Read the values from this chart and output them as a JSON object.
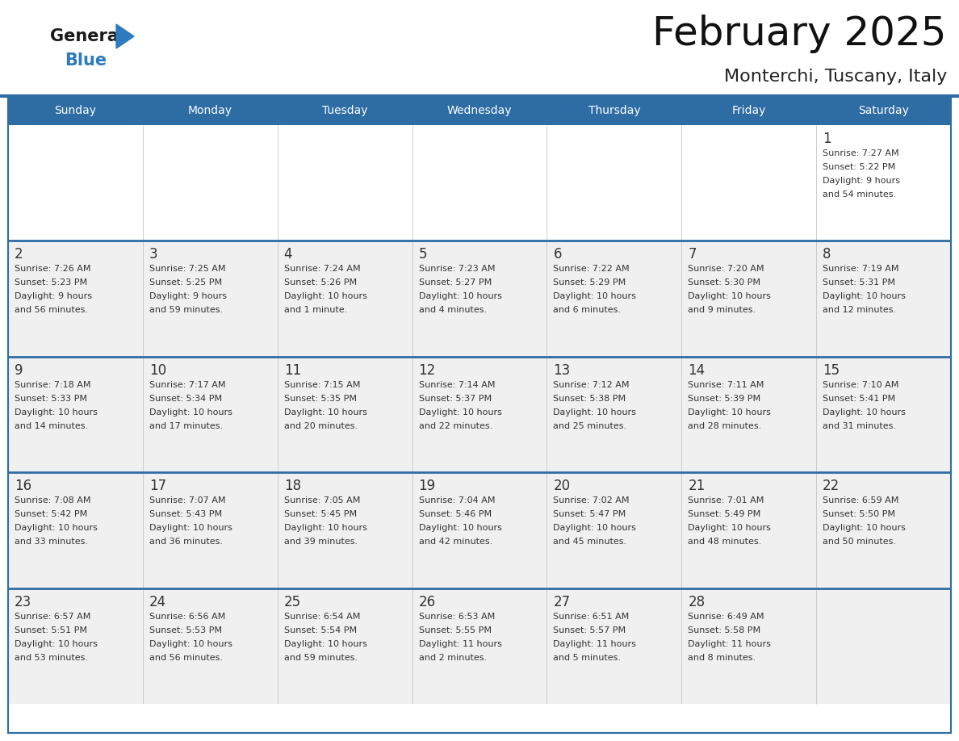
{
  "title": "February 2025",
  "subtitle": "Monterchi, Tuscany, Italy",
  "header_bg": "#2E6DA4",
  "header_text_color": "#FFFFFF",
  "cell_bg_light": "#FFFFFF",
  "cell_bg_gray": "#F0F0F0",
  "cell_border": "#BBBBBB",
  "week_separator_color": "#2E6DA4",
  "day_number_color": "#333333",
  "info_text_color": "#333333",
  "logo_general_color": "#1a1a1a",
  "logo_blue_color": "#2E7BBF",
  "day_headers": [
    "Sunday",
    "Monday",
    "Tuesday",
    "Wednesday",
    "Thursday",
    "Friday",
    "Saturday"
  ],
  "calendar": [
    [
      null,
      null,
      null,
      null,
      null,
      null,
      {
        "day": 1,
        "sunrise": "7:27 AM",
        "sunset": "5:22 PM",
        "daylight": "9 hours\nand 54 minutes."
      }
    ],
    [
      {
        "day": 2,
        "sunrise": "7:26 AM",
        "sunset": "5:23 PM",
        "daylight": "9 hours\nand 56 minutes."
      },
      {
        "day": 3,
        "sunrise": "7:25 AM",
        "sunset": "5:25 PM",
        "daylight": "9 hours\nand 59 minutes."
      },
      {
        "day": 4,
        "sunrise": "7:24 AM",
        "sunset": "5:26 PM",
        "daylight": "10 hours\nand 1 minute."
      },
      {
        "day": 5,
        "sunrise": "7:23 AM",
        "sunset": "5:27 PM",
        "daylight": "10 hours\nand 4 minutes."
      },
      {
        "day": 6,
        "sunrise": "7:22 AM",
        "sunset": "5:29 PM",
        "daylight": "10 hours\nand 6 minutes."
      },
      {
        "day": 7,
        "sunrise": "7:20 AM",
        "sunset": "5:30 PM",
        "daylight": "10 hours\nand 9 minutes."
      },
      {
        "day": 8,
        "sunrise": "7:19 AM",
        "sunset": "5:31 PM",
        "daylight": "10 hours\nand 12 minutes."
      }
    ],
    [
      {
        "day": 9,
        "sunrise": "7:18 AM",
        "sunset": "5:33 PM",
        "daylight": "10 hours\nand 14 minutes."
      },
      {
        "day": 10,
        "sunrise": "7:17 AM",
        "sunset": "5:34 PM",
        "daylight": "10 hours\nand 17 minutes."
      },
      {
        "day": 11,
        "sunrise": "7:15 AM",
        "sunset": "5:35 PM",
        "daylight": "10 hours\nand 20 minutes."
      },
      {
        "day": 12,
        "sunrise": "7:14 AM",
        "sunset": "5:37 PM",
        "daylight": "10 hours\nand 22 minutes."
      },
      {
        "day": 13,
        "sunrise": "7:12 AM",
        "sunset": "5:38 PM",
        "daylight": "10 hours\nand 25 minutes."
      },
      {
        "day": 14,
        "sunrise": "7:11 AM",
        "sunset": "5:39 PM",
        "daylight": "10 hours\nand 28 minutes."
      },
      {
        "day": 15,
        "sunrise": "7:10 AM",
        "sunset": "5:41 PM",
        "daylight": "10 hours\nand 31 minutes."
      }
    ],
    [
      {
        "day": 16,
        "sunrise": "7:08 AM",
        "sunset": "5:42 PM",
        "daylight": "10 hours\nand 33 minutes."
      },
      {
        "day": 17,
        "sunrise": "7:07 AM",
        "sunset": "5:43 PM",
        "daylight": "10 hours\nand 36 minutes."
      },
      {
        "day": 18,
        "sunrise": "7:05 AM",
        "sunset": "5:45 PM",
        "daylight": "10 hours\nand 39 minutes."
      },
      {
        "day": 19,
        "sunrise": "7:04 AM",
        "sunset": "5:46 PM",
        "daylight": "10 hours\nand 42 minutes."
      },
      {
        "day": 20,
        "sunrise": "7:02 AM",
        "sunset": "5:47 PM",
        "daylight": "10 hours\nand 45 minutes."
      },
      {
        "day": 21,
        "sunrise": "7:01 AM",
        "sunset": "5:49 PM",
        "daylight": "10 hours\nand 48 minutes."
      },
      {
        "day": 22,
        "sunrise": "6:59 AM",
        "sunset": "5:50 PM",
        "daylight": "10 hours\nand 50 minutes."
      }
    ],
    [
      {
        "day": 23,
        "sunrise": "6:57 AM",
        "sunset": "5:51 PM",
        "daylight": "10 hours\nand 53 minutes."
      },
      {
        "day": 24,
        "sunrise": "6:56 AM",
        "sunset": "5:53 PM",
        "daylight": "10 hours\nand 56 minutes."
      },
      {
        "day": 25,
        "sunrise": "6:54 AM",
        "sunset": "5:54 PM",
        "daylight": "10 hours\nand 59 minutes."
      },
      {
        "day": 26,
        "sunrise": "6:53 AM",
        "sunset": "5:55 PM",
        "daylight": "11 hours\nand 2 minutes."
      },
      {
        "day": 27,
        "sunrise": "6:51 AM",
        "sunset": "5:57 PM",
        "daylight": "11 hours\nand 5 minutes."
      },
      {
        "day": 28,
        "sunrise": "6:49 AM",
        "sunset": "5:58 PM",
        "daylight": "11 hours\nand 8 minutes."
      },
      null
    ]
  ]
}
